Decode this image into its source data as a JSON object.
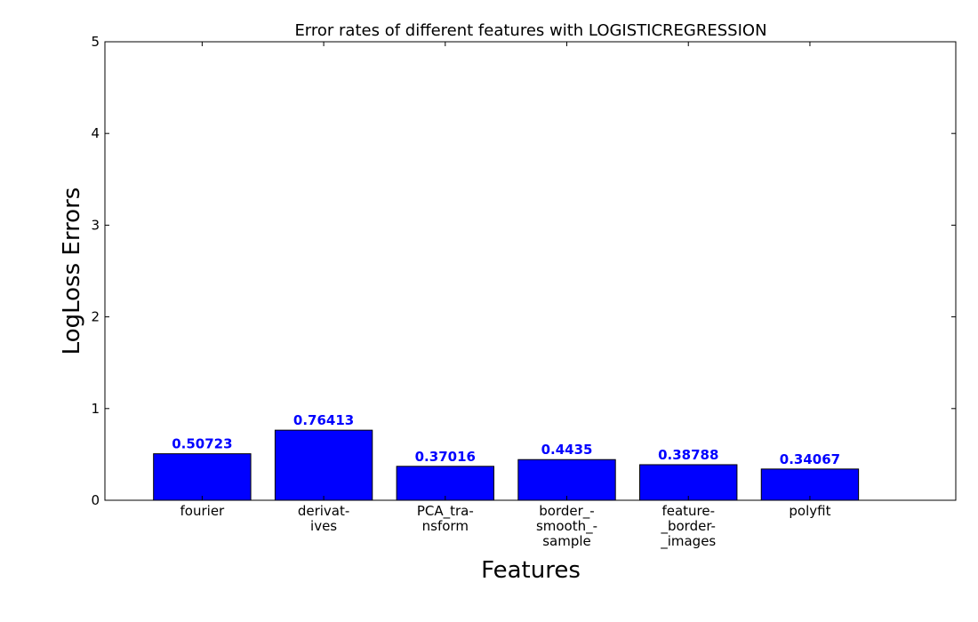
{
  "chart_data": {
    "type": "bar",
    "title": "Error rates of different features with LOGISTICREGRESSION",
    "xlabel": "Features",
    "ylabel": "LogLoss Errors",
    "categories": [
      [
        "fourier"
      ],
      [
        "derivat-",
        "ives"
      ],
      [
        "PCA_tra-",
        "nsform"
      ],
      [
        "border_-",
        "smooth_-",
        "sample"
      ],
      [
        "feature-",
        "_border-",
        "_images"
      ],
      [
        "polyfit"
      ]
    ],
    "values": [
      0.50723,
      0.76413,
      0.37016,
      0.4435,
      0.38788,
      0.34067
    ],
    "value_labels": [
      "0.50723",
      "0.76413",
      "0.37016",
      "0.4435",
      "0.38788",
      "0.34067"
    ],
    "ylim": [
      0,
      5
    ],
    "xlim": [
      0,
      7
    ],
    "yticks": [
      0,
      1,
      2,
      3,
      4,
      5
    ],
    "grid": false,
    "bar_color": "#0000ff",
    "label_color": "#0000ff"
  }
}
